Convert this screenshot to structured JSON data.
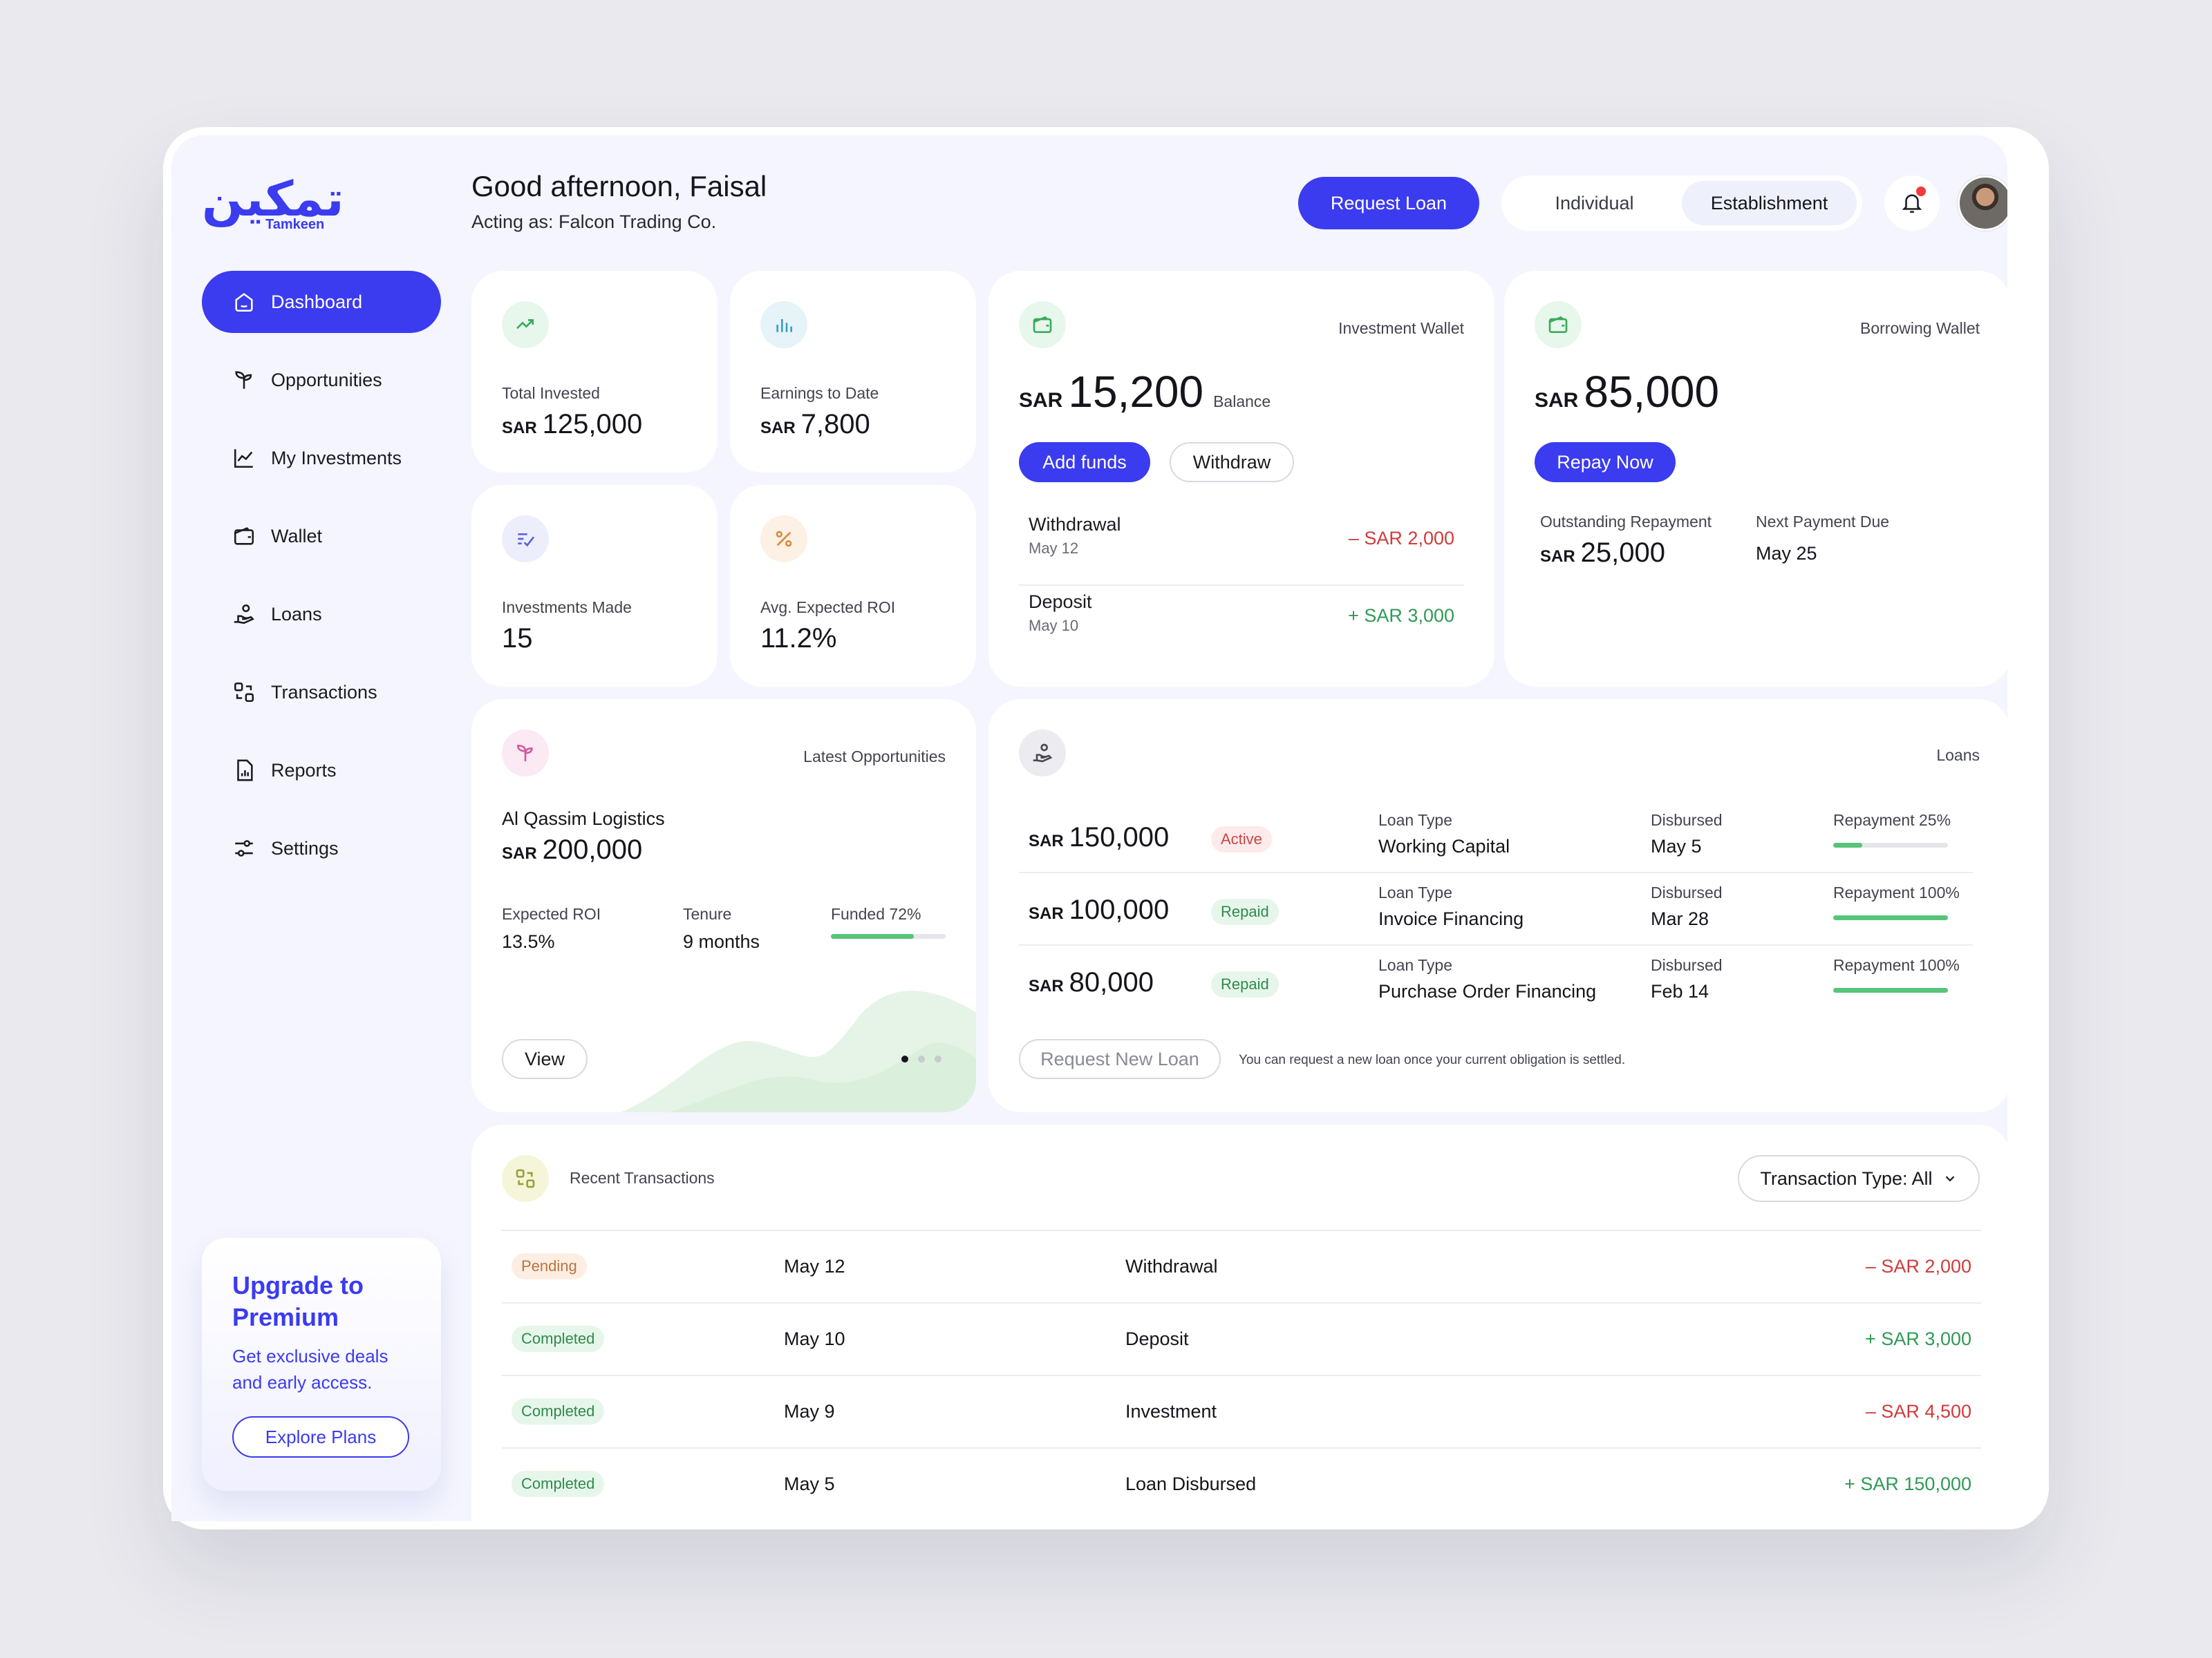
{
  "app": {
    "logo_ar": "تمكين",
    "logo_en": "Tamkeen"
  },
  "sidebar": {
    "items": [
      {
        "label": "Dashboard",
        "icon": "home-icon"
      },
      {
        "label": "Opportunities",
        "icon": "sprout-icon"
      },
      {
        "label": "My Investments",
        "icon": "chart-line-icon"
      },
      {
        "label": "Wallet",
        "icon": "wallet-icon"
      },
      {
        "label": "Loans",
        "icon": "hand-coin-icon"
      },
      {
        "label": "Transactions",
        "icon": "exchange-icon"
      },
      {
        "label": "Reports",
        "icon": "report-icon"
      },
      {
        "label": "Settings",
        "icon": "sliders-icon"
      }
    ],
    "premium": {
      "title": "Upgrade to Premium",
      "text": "Get exclusive deals and early access.",
      "button": "Explore Plans"
    }
  },
  "header": {
    "greeting": "Good afternoon, Faisal",
    "acting_as": "Acting as: Falcon Trading Co.",
    "request_loan": "Request Loan",
    "toggle": [
      "Individual",
      "Establishment"
    ],
    "toggle_selected": "Establishment"
  },
  "stats": {
    "total_invested": {
      "label": "Total Invested",
      "currency": "SAR",
      "value": "125,000"
    },
    "earnings": {
      "label": "Earnings to Date",
      "currency": "SAR",
      "value": "7,800"
    },
    "investments_made": {
      "label": "Investments Made",
      "value": "15"
    },
    "avg_roi": {
      "label": "Avg. Expected ROI",
      "value": "11.2%"
    }
  },
  "investment_wallet": {
    "title": "Investment Wallet",
    "currency": "SAR",
    "balance": "15,200",
    "balance_label": "Balance",
    "add_funds": "Add funds",
    "withdraw": "Withdraw",
    "rows": [
      {
        "title": "Withdrawal",
        "date": "May 12",
        "amount": "– SAR 2,000"
      },
      {
        "title": "Deposit",
        "date": "May 10",
        "amount": "+ SAR 3,000"
      }
    ]
  },
  "borrowing_wallet": {
    "title": "Borrowing Wallet",
    "currency": "SAR",
    "balance": "85,000",
    "repay": "Repay Now",
    "outstanding_label": "Outstanding Repayment",
    "outstanding_value": "25,000",
    "next_due_label": "Next Payment Due",
    "next_due_value": "May 25"
  },
  "opportunities": {
    "title": "Latest Opportunities",
    "name": "Al Qassim Logistics",
    "currency": "SAR",
    "amount": "200,000",
    "roi_label": "Expected ROI",
    "roi_value": "13.5%",
    "tenure_label": "Tenure",
    "tenure_value": "9 months",
    "funded_label": "Funded 72%",
    "funded_pct": 72,
    "view": "View"
  },
  "loans": {
    "title": "Loans",
    "type_label": "Loan Type",
    "disbursed_label": "Disbursed",
    "rows": [
      {
        "currency": "SAR",
        "amount": "150,000",
        "status": "Active",
        "type": "Working Capital",
        "disbursed": "May 5",
        "repayment_label": "Repayment 25%",
        "repayment_pct": 25
      },
      {
        "currency": "SAR",
        "amount": "100,000",
        "status": "Repaid",
        "type": "Invoice Financing",
        "disbursed": "Mar 28",
        "repayment_label": "Repayment 100%",
        "repayment_pct": 100
      },
      {
        "currency": "SAR",
        "amount": "80,000",
        "status": "Repaid",
        "type": "Purchase Order Financing",
        "disbursed": "Feb 14",
        "repayment_label": "Repayment 100%",
        "repayment_pct": 100
      }
    ],
    "request_new": "Request New Loan",
    "note": "You can request a new loan once your current obligation is settled."
  },
  "transactions": {
    "title": "Recent Transactions",
    "filter": "Transaction Type: All",
    "rows": [
      {
        "status": "Pending",
        "date": "May 12",
        "type": "Withdrawal",
        "amount": "– SAR 2,000"
      },
      {
        "status": "Completed",
        "date": "May 10",
        "type": "Deposit",
        "amount": "+ SAR 3,000"
      },
      {
        "status": "Completed",
        "date": "May 9",
        "type": "Investment",
        "amount": "– SAR 4,500"
      },
      {
        "status": "Completed",
        "date": "May 5",
        "type": "Loan Disbursed",
        "amount": "+ SAR 150,000"
      }
    ]
  },
  "colors": {
    "accent": "#3b3bef",
    "positive": "#2e9a55",
    "negative": "#d23b3b",
    "bg": "#f4f5fe"
  }
}
